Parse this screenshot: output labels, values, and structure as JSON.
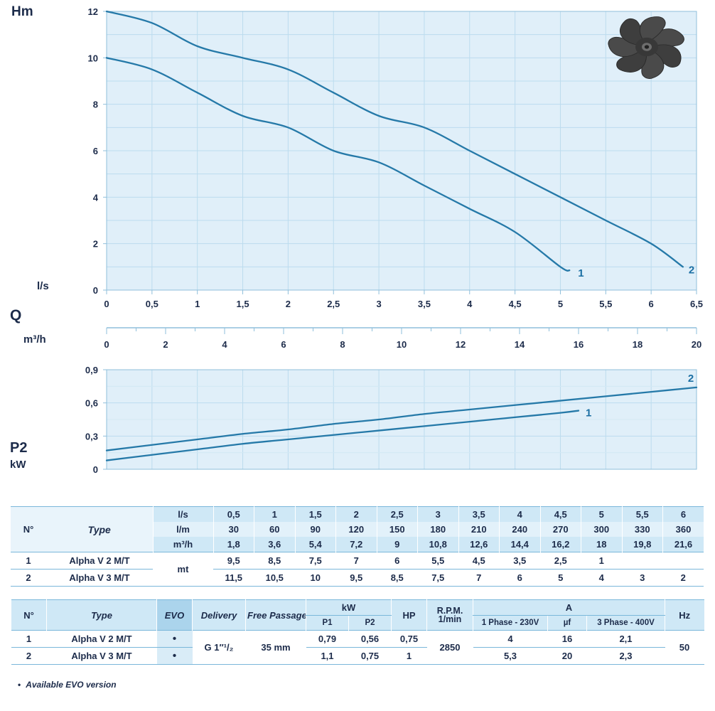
{
  "colors": {
    "curve": "#2579a8",
    "curve_label": "#1b6fa3",
    "plot_bg": "#e0eff9",
    "grid": "#bcdcee",
    "grid_minor": "#d3e8f4",
    "frame": "#8fbfdb",
    "text": "#1c2b4a",
    "table_header_bg": "#cfe8f6",
    "table_header_alt_bg": "#e2f1fa",
    "table_line": "#7ab7da",
    "evo_header_bg": "#abd4ec",
    "evo_cell_bg": "#d9ecf7"
  },
  "chart_data": [
    {
      "type": "line",
      "ylabel": "Hm",
      "xlabel_primary": "l/s",
      "flow_symbol": "Q",
      "xlabel_secondary": "m³/h",
      "ylim": [
        0,
        12
      ],
      "xlim_ls": [
        0,
        6.5
      ],
      "xlim_m3h": [
        0,
        20
      ],
      "grid": true,
      "y_ticks": [
        "0",
        "2",
        "4",
        "6",
        "8",
        "10",
        "12"
      ],
      "x_ticks_ls": [
        "0",
        "0,5",
        "1",
        "1,5",
        "2",
        "2,5",
        "3",
        "3,5",
        "4",
        "4,5",
        "5",
        "5,5",
        "6",
        "6,5"
      ],
      "x_ticks_m3h": [
        "0",
        "2",
        "4",
        "6",
        "8",
        "10",
        "12",
        "14",
        "16",
        "18",
        "20"
      ],
      "series": [
        {
          "name": "1",
          "x": [
            0,
            0.5,
            1,
            1.5,
            2,
            2.5,
            3,
            3.5,
            4,
            4.5,
            5,
            5.1
          ],
          "y": [
            10,
            9.5,
            8.5,
            7.5,
            7,
            6,
            5.5,
            4.5,
            3.5,
            2.5,
            1,
            0.85
          ]
        },
        {
          "name": "2",
          "x": [
            0,
            0.5,
            1,
            1.5,
            2,
            2.5,
            3,
            3.5,
            4,
            4.5,
            5,
            5.5,
            6,
            6.35
          ],
          "y": [
            12,
            11.5,
            10.5,
            10,
            9.5,
            8.5,
            7.5,
            7,
            6,
            5,
            4,
            3,
            2,
            1
          ]
        }
      ]
    },
    {
      "type": "line",
      "ylabel": "P2",
      "ylabel_unit": "kW",
      "ylim": [
        0,
        0.9
      ],
      "grid": true,
      "y_ticks": [
        "0",
        "0,3",
        "0,6",
        "0,9"
      ],
      "series": [
        {
          "name": "1",
          "x": [
            0,
            0.5,
            1,
            1.5,
            2,
            2.5,
            3,
            3.5,
            4,
            4.5,
            5,
            5.2
          ],
          "y": [
            0.08,
            0.13,
            0.18,
            0.23,
            0.27,
            0.31,
            0.35,
            0.39,
            0.43,
            0.47,
            0.51,
            0.53
          ]
        },
        {
          "name": "2",
          "x": [
            0,
            0.5,
            1,
            1.5,
            2,
            2.5,
            3,
            3.5,
            4,
            4.5,
            5,
            5.5,
            6,
            6.5
          ],
          "y": [
            0.17,
            0.22,
            0.27,
            0.32,
            0.36,
            0.41,
            0.45,
            0.5,
            0.54,
            0.58,
            0.62,
            0.66,
            0.7,
            0.74
          ]
        }
      ]
    }
  ],
  "tables": {
    "performance": {
      "col_headers": {
        "n": "N°",
        "type": "Type",
        "data_unit": "mt",
        "unit_rows": [
          {
            "unit": "l/s",
            "values": [
              "0,5",
              "1",
              "1,5",
              "2",
              "2,5",
              "3",
              "3,5",
              "4",
              "4,5",
              "5",
              "5,5",
              "6"
            ]
          },
          {
            "unit": "l/m",
            "values": [
              "30",
              "60",
              "90",
              "120",
              "150",
              "180",
              "210",
              "240",
              "270",
              "300",
              "330",
              "360"
            ]
          },
          {
            "unit": "m³/h",
            "values": [
              "1,8",
              "3,6",
              "5,4",
              "7,2",
              "9",
              "10,8",
              "12,6",
              "14,4",
              "16,2",
              "18",
              "19,8",
              "21,6"
            ]
          }
        ]
      },
      "rows": [
        {
          "n": "1",
          "type": "Alpha V 2 M/T",
          "values": [
            "9,5",
            "8,5",
            "7,5",
            "7",
            "6",
            "5,5",
            "4,5",
            "3,5",
            "2,5",
            "1",
            "",
            ""
          ]
        },
        {
          "n": "2",
          "type": "Alpha V 3 M/T",
          "values": [
            "11,5",
            "10,5",
            "10",
            "9,5",
            "8,5",
            "7,5",
            "7",
            "6",
            "5",
            "4",
            "3",
            "2"
          ]
        }
      ]
    },
    "technical": {
      "headers": {
        "n": "N°",
        "type": "Type",
        "evo": "EVO",
        "delivery": "Delivery",
        "free_passage": "Free Passage",
        "kw": "kW",
        "p1": "P1",
        "p2": "P2",
        "hp": "HP",
        "rpm_line1": "R.P.M.",
        "rpm_line2": "1/min",
        "a": "A",
        "phase1": "1 Phase - 230V",
        "uf": "µf",
        "phase3": "3 Phase - 400V",
        "hz": "Hz"
      },
      "shared": {
        "delivery": "G 1″¹/₂",
        "free_passage": "35 mm",
        "rpm": "2850",
        "hz": "50"
      },
      "rows": [
        {
          "n": "1",
          "type": "Alpha V 2 M/T",
          "evo": "•",
          "p1": "0,79",
          "p2": "0,56",
          "hp": "0,75",
          "a230": "4",
          "uf": "16",
          "a400": "2,1"
        },
        {
          "n": "2",
          "type": "Alpha V 3 M/T",
          "evo": "•",
          "p1": "1,1",
          "p2": "0,75",
          "hp": "1",
          "a230": "5,3",
          "uf": "20",
          "a400": "2,3"
        }
      ]
    }
  },
  "footnote": {
    "bullet": "•",
    "text": "Available EVO version"
  }
}
